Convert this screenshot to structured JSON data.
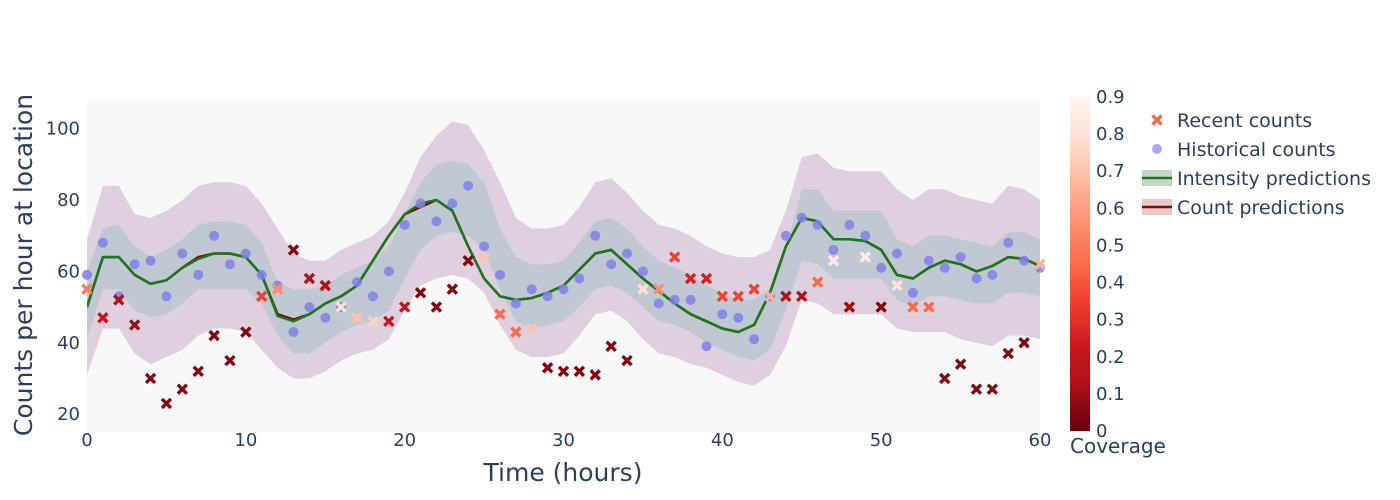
{
  "chart_data": {
    "type": "scatter",
    "xlabel": "Time (hours)",
    "ylabel": "Counts per hour at location",
    "xlim": [
      0,
      60
    ],
    "ylim": [
      15,
      108
    ],
    "x_ticks": [
      0,
      10,
      20,
      30,
      40,
      50,
      60
    ],
    "y_ticks": [
      20,
      40,
      60,
      80,
      100
    ],
    "background": "#f9f8f9",
    "legend": {
      "placement": "right",
      "entries": [
        {
          "name": "Recent counts",
          "marker": "x",
          "color": "#ee6a4d"
        },
        {
          "name": "Historical counts",
          "marker": "circle",
          "color": "#aaaaf4"
        },
        {
          "name": "Intensity predictions",
          "marker": "line",
          "color": "#1a7a1a"
        },
        {
          "name": "Count predictions",
          "marker": "line",
          "color": "#7a0a0a"
        }
      ]
    },
    "colorbar": {
      "title": "Coverage",
      "range": [
        0,
        0.9
      ],
      "ticks": [
        "0",
        "0.1",
        "0.2",
        "0.3",
        "0.4",
        "0.5",
        "0.6",
        "0.7",
        "0.8",
        "0.9"
      ],
      "colors": [
        "#67000d",
        "#a50f15",
        "#cb181d",
        "#ef3b2c",
        "#fb6a4a",
        "#fc9272",
        "#fcbba1",
        "#fee0d2",
        "#fff5f0"
      ]
    },
    "band_outer": {
      "name": "outer interval",
      "color": "#dfd0df",
      "x": [
        0,
        1,
        2,
        3,
        4,
        5,
        6,
        7,
        8,
        9,
        10,
        11,
        12,
        13,
        14,
        15,
        16,
        17,
        18,
        19,
        20,
        21,
        22,
        23,
        24,
        25,
        26,
        27,
        28,
        29,
        30,
        31,
        32,
        33,
        34,
        35,
        36,
        37,
        38,
        39,
        40,
        41,
        42,
        43,
        44,
        45,
        46,
        47,
        48,
        49,
        50,
        51,
        52,
        53,
        54,
        55,
        56,
        57,
        58,
        59,
        60
      ],
      "upper": [
        69,
        84,
        84,
        76,
        75,
        77,
        80,
        84,
        85,
        85,
        84,
        79,
        72,
        65,
        63,
        63,
        66,
        68,
        70,
        74,
        82,
        92,
        98,
        102,
        101,
        94,
        85,
        75,
        72,
        72,
        73,
        78,
        85,
        86,
        82,
        77,
        73,
        72,
        70,
        67,
        65,
        64,
        64,
        66,
        77,
        92,
        93,
        89,
        88,
        88,
        88,
        83,
        80,
        83,
        83,
        81,
        80,
        79,
        84,
        83,
        80
      ],
      "lower": [
        31,
        44,
        44,
        37,
        34,
        36,
        38,
        42,
        44,
        44,
        43,
        38,
        33,
        30,
        30,
        32,
        35,
        37,
        38,
        41,
        49,
        56,
        58,
        59,
        58,
        54,
        45,
        38,
        36,
        36,
        37,
        42,
        48,
        49,
        46,
        41,
        37,
        36,
        34,
        33,
        31,
        29,
        28,
        31,
        39,
        52,
        51,
        48,
        48,
        48,
        48,
        44,
        43,
        43,
        43,
        41,
        40,
        39,
        42,
        42,
        41
      ]
    },
    "band_inner": {
      "name": "inner interval",
      "color": "#c0c8d3",
      "x": [
        0,
        1,
        2,
        3,
        4,
        5,
        6,
        7,
        8,
        9,
        10,
        11,
        12,
        13,
        14,
        15,
        16,
        17,
        18,
        19,
        20,
        21,
        22,
        23,
        24,
        25,
        26,
        27,
        28,
        29,
        30,
        31,
        32,
        33,
        34,
        35,
        36,
        37,
        38,
        39,
        40,
        41,
        42,
        43,
        44,
        45,
        46,
        47,
        48,
        49,
        50,
        51,
        52,
        53,
        54,
        55,
        56,
        57,
        58,
        59,
        60
      ],
      "upper": [
        60,
        72,
        73,
        67,
        64,
        66,
        69,
        73,
        74,
        74,
        73,
        68,
        57,
        55,
        55,
        56,
        59,
        61,
        63,
        67,
        76,
        85,
        90,
        91,
        90,
        85,
        72,
        64,
        62,
        62,
        63,
        68,
        74,
        75,
        72,
        67,
        63,
        61,
        59,
        56,
        54,
        52,
        52,
        55,
        66,
        83,
        83,
        77,
        77,
        77,
        77,
        69,
        67,
        70,
        70,
        69,
        68,
        67,
        71,
        71,
        69
      ],
      "lower": [
        41,
        55,
        55,
        49,
        47,
        48,
        51,
        55,
        55,
        55,
        55,
        51,
        42,
        37,
        37,
        40,
        43,
        45,
        46,
        49,
        58,
        66,
        70,
        71,
        70,
        66,
        55,
        46,
        44,
        45,
        46,
        50,
        55,
        56,
        54,
        50,
        46,
        45,
        43,
        40,
        38,
        36,
        35,
        38,
        49,
        63,
        62,
        58,
        58,
        58,
        58,
        52,
        50,
        53,
        53,
        52,
        51,
        51,
        54,
        54,
        53
      ]
    },
    "series": [
      {
        "name": "Intensity predictions",
        "color": "#1a7a1a",
        "x": [
          0,
          1,
          2,
          3,
          4,
          5,
          6,
          7,
          8,
          9,
          10,
          11,
          12,
          13,
          14,
          15,
          16,
          17,
          18,
          19,
          20,
          21,
          22,
          23,
          24,
          25,
          26,
          27,
          28,
          29,
          30,
          31,
          32,
          33,
          34,
          35,
          36,
          37,
          38,
          39,
          40,
          41,
          42,
          43,
          44,
          45,
          46,
          47,
          48,
          49,
          50,
          51,
          52,
          53,
          54,
          55,
          56,
          57,
          58,
          59,
          60
        ],
        "y": [
          50,
          64,
          64,
          59,
          56.5,
          57.5,
          61,
          63.5,
          65,
          65,
          64,
          59,
          47.5,
          46,
          48,
          51,
          53,
          56,
          63,
          70,
          76,
          79,
          80,
          77,
          67,
          58,
          53,
          52,
          52.5,
          54,
          56,
          60.5,
          65,
          66,
          62,
          58,
          54.5,
          51,
          48,
          46,
          44,
          43,
          45,
          54,
          67,
          75,
          74,
          69,
          69,
          68.5,
          66,
          59,
          58,
          61,
          63,
          62,
          60,
          61.5,
          64,
          63.5,
          61.5
        ]
      },
      {
        "name": "Count predictions",
        "color": "#7a0a0a",
        "x": [
          0,
          1,
          2,
          3,
          4,
          5,
          6,
          7,
          8,
          9,
          10,
          11,
          12,
          13,
          14,
          15,
          16,
          17,
          18,
          19,
          20,
          21,
          22,
          23,
          24,
          25,
          26,
          27,
          28,
          29,
          30,
          31,
          32,
          33,
          34,
          35,
          36,
          37,
          38,
          39,
          40,
          41,
          42,
          43,
          44,
          45,
          46,
          47,
          48,
          49,
          50,
          51,
          52,
          53,
          54,
          55,
          56,
          57,
          58,
          59,
          60
        ],
        "y": [
          50,
          64,
          64,
          59,
          56.5,
          57.5,
          61,
          64,
          65,
          65,
          64,
          59,
          48,
          46.5,
          48,
          51,
          53,
          56,
          63,
          70,
          76,
          78,
          80,
          77,
          67,
          58,
          53,
          52,
          52.5,
          54,
          56,
          60.5,
          65,
          66,
          62,
          58,
          54.5,
          51,
          48,
          46,
          44,
          43,
          45,
          54,
          67,
          75,
          74,
          69,
          69,
          68.5,
          66,
          59,
          58,
          61,
          63,
          62,
          60,
          61.5,
          64,
          63.5,
          61.5
        ]
      },
      {
        "name": "Historical counts",
        "color": "#aaaaf4",
        "x": [
          0,
          1,
          2,
          3,
          4,
          5,
          6,
          7,
          8,
          9,
          10,
          11,
          12,
          13,
          14,
          15,
          16,
          17,
          18,
          19,
          20,
          21,
          22,
          23,
          24,
          25,
          26,
          27,
          28,
          29,
          30,
          31,
          32,
          33,
          34,
          35,
          36,
          37,
          38,
          39,
          40,
          41,
          42,
          43,
          44,
          45,
          46,
          47,
          48,
          49,
          50,
          51,
          52,
          53,
          54,
          55,
          56,
          57,
          58,
          59,
          60
        ],
        "y": [
          59,
          68,
          53,
          62,
          63,
          53,
          65,
          59,
          70,
          62,
          65,
          59,
          56,
          43,
          50,
          47,
          50,
          57,
          53,
          60,
          73,
          79,
          74,
          79,
          84,
          67,
          59,
          51,
          55,
          53,
          55,
          58,
          70,
          62,
          65,
          60,
          51,
          52,
          52,
          39,
          48,
          47,
          41,
          53,
          70,
          75,
          73,
          66,
          73,
          70,
          61,
          65,
          54,
          63,
          61,
          64,
          58,
          59,
          68,
          63,
          61
        ]
      },
      {
        "name": "Recent counts",
        "x": [
          0,
          1,
          2,
          3,
          4,
          5,
          6,
          7,
          8,
          9,
          10,
          11,
          12,
          13,
          14,
          15,
          16,
          17,
          18,
          19,
          20,
          21,
          22,
          23,
          24,
          25,
          26,
          27,
          28,
          29,
          30,
          31,
          32,
          33,
          34,
          35,
          36,
          37,
          38,
          39,
          40,
          41,
          42,
          43,
          44,
          45,
          46,
          47,
          48,
          49,
          50,
          51,
          52,
          53,
          54,
          55,
          56,
          57,
          58,
          59,
          60
        ],
        "y": [
          55,
          47,
          52,
          45,
          30,
          23,
          27,
          32,
          42,
          35,
          43,
          53,
          55,
          66,
          58,
          56,
          50,
          47,
          46,
          46,
          50,
          54,
          50,
          55,
          63,
          64,
          48,
          43,
          44,
          33,
          32,
          32,
          31,
          39,
          35,
          55,
          55,
          64,
          58,
          58,
          53,
          53,
          55,
          53,
          53,
          53,
          57,
          63,
          50,
          64,
          50,
          56,
          50,
          50,
          30,
          34,
          27,
          27,
          37,
          40,
          62
        ],
        "coverage": [
          0.5,
          0.2,
          0.15,
          0.1,
          0.05,
          0.05,
          0.05,
          0.05,
          0.05,
          0.05,
          0.05,
          0.35,
          0.55,
          0.05,
          0.15,
          0.15,
          0.8,
          0.7,
          0.75,
          0.2,
          0.2,
          0.05,
          0.05,
          0.05,
          0.05,
          0.7,
          0.45,
          0.45,
          0.7,
          0.05,
          0.05,
          0.05,
          0.05,
          0.05,
          0.05,
          0.8,
          0.55,
          0.35,
          0.25,
          0.25,
          0.35,
          0.35,
          0.35,
          0.65,
          0.15,
          0.15,
          0.45,
          0.85,
          0.1,
          0.85,
          0.05,
          0.8,
          0.45,
          0.45,
          0.05,
          0.05,
          0.05,
          0.05,
          0.05,
          0.05,
          0.65
        ]
      }
    ]
  }
}
